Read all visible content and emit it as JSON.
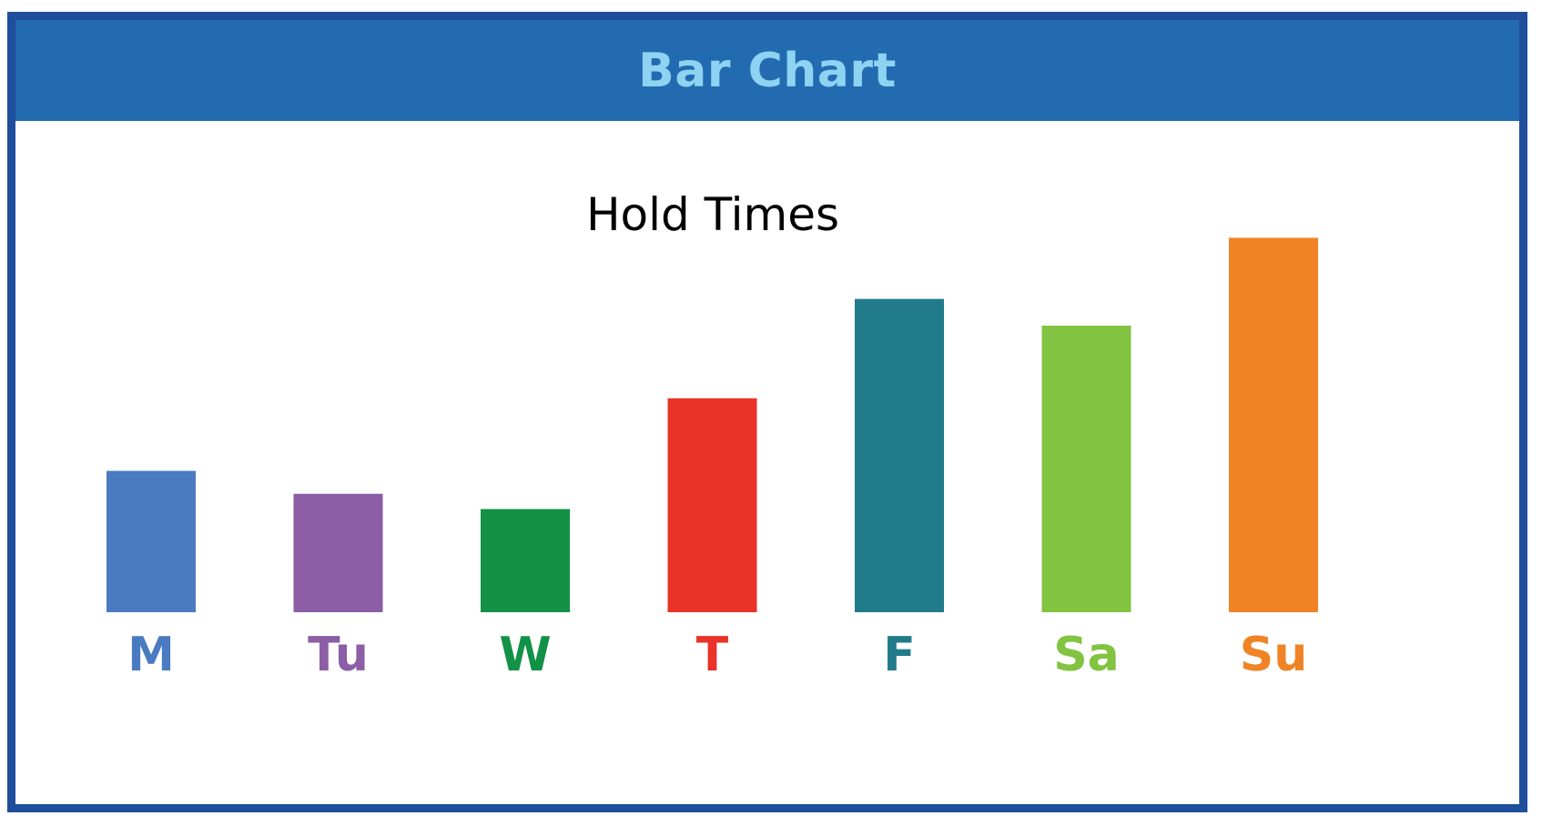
{
  "header": {
    "title": "Bar Chart"
  },
  "chart_data": {
    "type": "bar",
    "title": "Hold Times",
    "xlabel": "",
    "ylabel": "",
    "grid": false,
    "axes_visible": false,
    "categories": [
      "M",
      "Tu",
      "W",
      "T",
      "F",
      "Sa",
      "Su"
    ],
    "values": [
      37,
      31,
      27,
      56,
      82,
      75,
      98
    ],
    "colors": [
      "#4a7bc1",
      "#8b5ea6",
      "#129147",
      "#e93228",
      "#227b8a",
      "#82c341",
      "#ef8326"
    ],
    "ylim": [
      0,
      100
    ]
  }
}
